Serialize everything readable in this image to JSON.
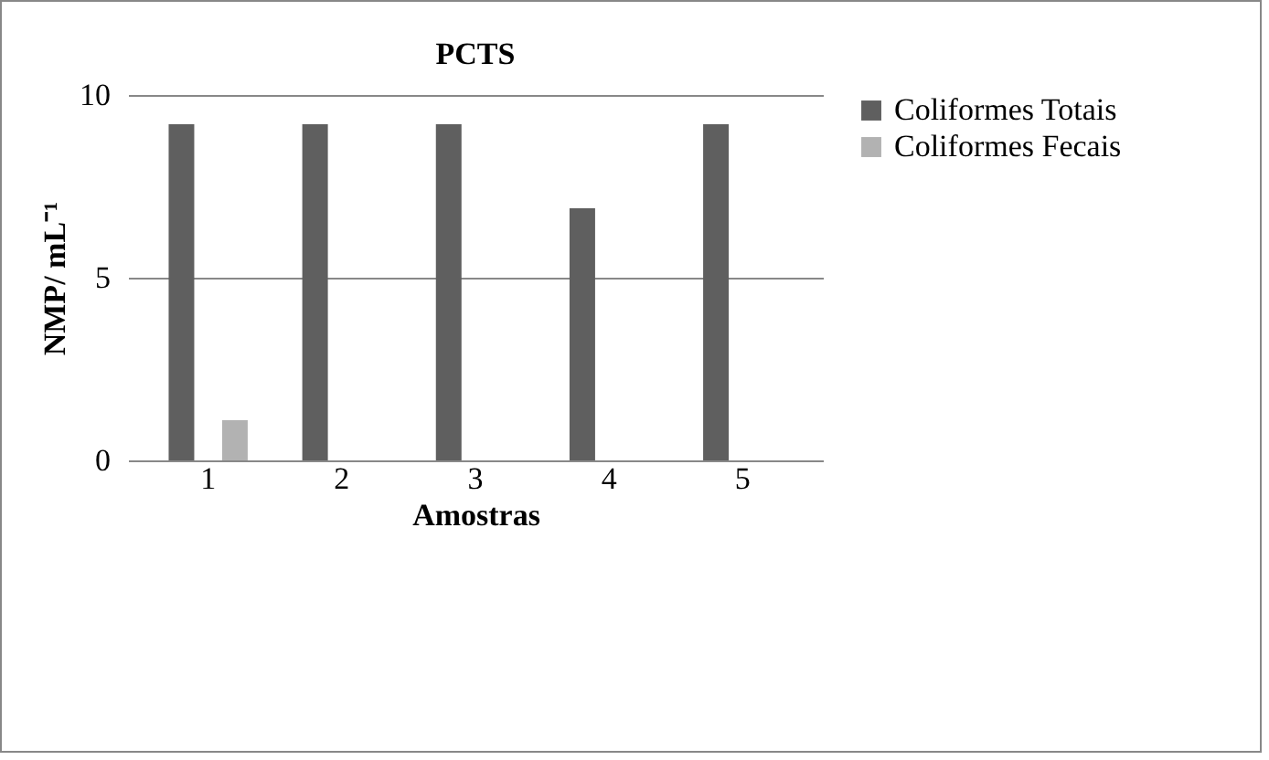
{
  "chart_data": {
    "type": "bar",
    "title": "PCTS",
    "xlabel": "Amostras",
    "ylabel": "NMP/ mL⁻¹",
    "categories": [
      "1",
      "2",
      "3",
      "4",
      "5"
    ],
    "series": [
      {
        "name": "Coliformes Totais",
        "color": "#5f5f5f",
        "values": [
          9.2,
          9.2,
          9.2,
          6.9,
          9.2
        ]
      },
      {
        "name": "Coliformes Fecais",
        "color": "#b2b2b2",
        "values": [
          1.1,
          0,
          0,
          0,
          0
        ]
      }
    ],
    "ylim": [
      0,
      10
    ],
    "yticks": [
      0,
      5,
      10
    ],
    "grid": "y",
    "legend": "right"
  }
}
